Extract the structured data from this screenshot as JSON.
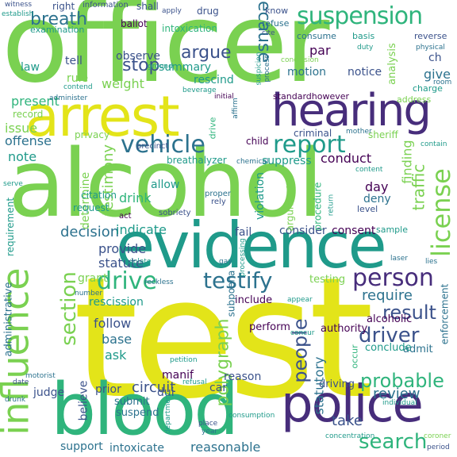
{
  "colors": {
    "yellow": "#e3e419",
    "lime": "#7ad151",
    "green": "#2fb47c",
    "teal": "#1f9a8a",
    "blue": "#2c728e",
    "indigo": "#3b528b",
    "purple": "#472d7b",
    "dark": "#440154"
  },
  "words": [
    {
      "text": "officer",
      "color": "lime"
    },
    {
      "text": "test",
      "color": "yellow"
    },
    {
      "text": "alcohol",
      "color": "lime"
    },
    {
      "text": "evidence",
      "color": "teal"
    },
    {
      "text": "blood",
      "color": "green"
    },
    {
      "text": "arrest",
      "color": "yellow"
    },
    {
      "text": "police",
      "color": "purple"
    },
    {
      "text": "hearing",
      "color": "purple"
    },
    {
      "text": "suspension",
      "color": "green"
    },
    {
      "text": "influence",
      "color": "lime"
    },
    {
      "text": "person",
      "color": "purple"
    },
    {
      "text": "testify",
      "color": "blue"
    },
    {
      "text": "drive",
      "color": "green"
    },
    {
      "text": "vehicle",
      "color": "blue"
    },
    {
      "text": "report",
      "color": "teal"
    },
    {
      "text": "license",
      "color": "lime"
    },
    {
      "text": "driver",
      "color": "indigo"
    },
    {
      "text": "result",
      "color": "indigo"
    },
    {
      "text": "section",
      "color": "lime"
    },
    {
      "text": "search",
      "color": "green"
    },
    {
      "text": "breath",
      "color": "blue"
    },
    {
      "text": "argue",
      "color": "indigo"
    },
    {
      "text": "stop",
      "color": "indigo"
    },
    {
      "text": "probable",
      "color": "green"
    },
    {
      "text": "people",
      "color": "indigo"
    },
    {
      "text": "polygraph",
      "color": "lime"
    },
    {
      "text": "because",
      "color": "blue"
    },
    {
      "text": "decision",
      "color": "blue"
    },
    {
      "text": "circuit",
      "color": "indigo"
    },
    {
      "text": "require",
      "color": "blue"
    },
    {
      "text": "testimony",
      "color": "lime"
    },
    {
      "text": "traffic",
      "color": "lime"
    },
    {
      "text": "finding",
      "color": "lime"
    },
    {
      "text": "statutory",
      "color": "blue"
    },
    {
      "text": "reasonable",
      "color": "blue"
    },
    {
      "text": "intoxicate",
      "color": "blue"
    },
    {
      "text": "present",
      "color": "green"
    },
    {
      "text": "issue",
      "color": "lime"
    },
    {
      "text": "offense",
      "color": "blue"
    },
    {
      "text": "note",
      "color": "teal"
    },
    {
      "text": "weight",
      "color": "lime"
    },
    {
      "text": "determine",
      "color": "lime"
    },
    {
      "text": "indicate",
      "color": "teal"
    },
    {
      "text": "provide",
      "color": "indigo"
    },
    {
      "text": "statute",
      "color": "indigo"
    },
    {
      "text": "follow",
      "color": "indigo"
    },
    {
      "text": "base",
      "color": "blue"
    },
    {
      "text": "ask",
      "color": "teal"
    },
    {
      "text": "review",
      "color": "blue"
    },
    {
      "text": "take",
      "color": "indigo"
    },
    {
      "text": "believe",
      "color": "indigo"
    },
    {
      "text": "consider",
      "color": "indigo"
    },
    {
      "text": "consent",
      "color": "dark"
    },
    {
      "text": "conduct",
      "color": "dark"
    },
    {
      "text": "drink",
      "color": "green"
    },
    {
      "text": "allow",
      "color": "teal"
    },
    {
      "text": "summary",
      "color": "teal"
    },
    {
      "text": "rescind",
      "color": "teal"
    },
    {
      "text": "observe",
      "color": "indigo"
    },
    {
      "text": "suppress",
      "color": "teal"
    },
    {
      "text": "day",
      "color": "dark"
    },
    {
      "text": "deny",
      "color": "blue"
    },
    {
      "text": "give",
      "color": "blue"
    },
    {
      "text": "notice",
      "color": "indigo"
    },
    {
      "text": "motion",
      "color": "blue"
    },
    {
      "text": "par",
      "color": "dark"
    },
    {
      "text": "law",
      "color": "teal"
    },
    {
      "text": "tell",
      "color": "indigo"
    },
    {
      "text": "rule",
      "color": "lime"
    },
    {
      "text": "analysis",
      "color": "lime"
    },
    {
      "text": "grant",
      "color": "lime"
    },
    {
      "text": "drive",
      "color": "green"
    },
    {
      "text": "dui",
      "color": "indigo"
    },
    {
      "text": "car",
      "color": "indigo"
    },
    {
      "text": "manif",
      "color": "dark"
    },
    {
      "text": "reason",
      "color": "indigo"
    },
    {
      "text": "judge",
      "color": "indigo"
    },
    {
      "text": "prior",
      "color": "indigo"
    },
    {
      "text": "submit",
      "color": "blue"
    },
    {
      "text": "suspend",
      "color": "blue"
    },
    {
      "text": "support",
      "color": "blue"
    },
    {
      "text": "fail",
      "color": "indigo"
    },
    {
      "text": "violation",
      "color": "teal"
    },
    {
      "text": "rescission",
      "color": "teal"
    },
    {
      "text": "perform",
      "color": "dark"
    },
    {
      "text": "include",
      "color": "dark"
    },
    {
      "text": "authority",
      "color": "dark"
    },
    {
      "text": "alcoholic",
      "color": "dark"
    },
    {
      "text": "admit",
      "color": "blue"
    },
    {
      "text": "conclude",
      "color": "teal"
    },
    {
      "text": "testing",
      "color": "lime"
    },
    {
      "text": "driving",
      "color": "indigo"
    },
    {
      "text": "administrative",
      "color": "blue"
    },
    {
      "text": "requirement",
      "color": "teal"
    },
    {
      "text": "enforcement",
      "color": "blue"
    },
    {
      "text": "subpoena",
      "color": "blue"
    },
    {
      "text": "procedure",
      "color": "green"
    },
    {
      "text": "argument",
      "color": "lime"
    },
    {
      "text": "breathalyzer",
      "color": "teal"
    },
    {
      "text": "criminal",
      "color": "indigo"
    },
    {
      "text": "child",
      "color": "dark"
    },
    {
      "text": "privacy",
      "color": "lime"
    },
    {
      "text": "citation",
      "color": "teal"
    },
    {
      "text": "request",
      "color": "teal"
    },
    {
      "text": "sheriff",
      "color": "lime"
    },
    {
      "text": "record",
      "color": "lime"
    },
    {
      "text": "ballot",
      "color": "dark"
    },
    {
      "text": "intoxication",
      "color": "green"
    },
    {
      "text": "drug",
      "color": "indigo"
    },
    {
      "text": "shall",
      "color": "indigo"
    },
    {
      "text": "right",
      "color": "indigo"
    },
    {
      "text": "examination",
      "color": "teal"
    },
    {
      "text": "consume",
      "color": "blue"
    },
    {
      "text": "refuse",
      "color": "blue"
    },
    {
      "text": "know",
      "color": "indigo"
    },
    {
      "text": "basis",
      "color": "teal"
    },
    {
      "text": "reverse",
      "color": "indigo"
    },
    {
      "text": "charge",
      "color": "teal"
    },
    {
      "text": "address",
      "color": "lime"
    },
    {
      "text": "standardhowever",
      "color": "dark"
    },
    {
      "text": "level",
      "color": "indigo"
    },
    {
      "text": "sample",
      "color": "teal"
    },
    {
      "text": "occur",
      "color": "green"
    },
    {
      "text": "precinct",
      "color": "indigo"
    },
    {
      "text": "sobriety",
      "color": "indigo"
    },
    {
      "text": "act",
      "color": "dark"
    },
    {
      "text": "rely",
      "color": "indigo"
    },
    {
      "text": "proper",
      "color": "blue"
    },
    {
      "text": "information",
      "color": "indigo"
    },
    {
      "text": "apply",
      "color": "indigo"
    },
    {
      "text": "ground",
      "color": "teal"
    },
    {
      "text": "beverage",
      "color": "teal"
    },
    {
      "text": "initial",
      "color": "dark"
    },
    {
      "text": "suspicion",
      "color": "teal"
    },
    {
      "text": "process",
      "color": "blue"
    },
    {
      "text": "conclusion",
      "color": "lime"
    },
    {
      "text": "duty",
      "color": "teal"
    },
    {
      "text": "physical",
      "color": "blue"
    },
    {
      "text": "room",
      "color": "blue"
    },
    {
      "text": "contain",
      "color": "teal"
    },
    {
      "text": "content",
      "color": "teal"
    },
    {
      "text": "concentration",
      "color": "teal"
    },
    {
      "text": "coroner",
      "color": "lime"
    },
    {
      "text": "period",
      "color": "indigo"
    },
    {
      "text": "individual",
      "color": "teal"
    },
    {
      "text": "motorist",
      "color": "blue"
    },
    {
      "text": "date",
      "color": "indigo"
    },
    {
      "text": "drunk",
      "color": "blue"
    },
    {
      "text": "department",
      "color": "teal"
    },
    {
      "text": "place",
      "color": "indigo"
    },
    {
      "text": "year",
      "color": "blue"
    },
    {
      "text": "consumption",
      "color": "teal"
    },
    {
      "text": "petition",
      "color": "teal"
    },
    {
      "text": "refusal",
      "color": "teal"
    },
    {
      "text": "number",
      "color": "blue"
    },
    {
      "text": "reckless",
      "color": "blue"
    },
    {
      "text": "violate",
      "color": "teal"
    },
    {
      "text": "processing",
      "color": "teal"
    },
    {
      "text": "return",
      "color": "teal"
    },
    {
      "text": "laser",
      "color": "blue"
    },
    {
      "text": "lies",
      "color": "blue"
    },
    {
      "text": "concur",
      "color": "teal"
    },
    {
      "text": "appear",
      "color": "teal"
    },
    {
      "text": "affirm",
      "color": "blue"
    },
    {
      "text": "administer",
      "color": "blue"
    },
    {
      "text": "contend",
      "color": "teal"
    },
    {
      "text": "serve",
      "color": "teal"
    },
    {
      "text": "witness",
      "color": "indigo"
    },
    {
      "text": "establish",
      "color": "teal"
    },
    {
      "text": "chemical",
      "color": "blue"
    },
    {
      "text": "mother",
      "color": "blue"
    },
    {
      "text": "ch",
      "color": "indigo"
    },
    {
      "text": "gay",
      "color": "blue"
    },
    {
      "text": "cite",
      "color": "indigo"
    }
  ]
}
